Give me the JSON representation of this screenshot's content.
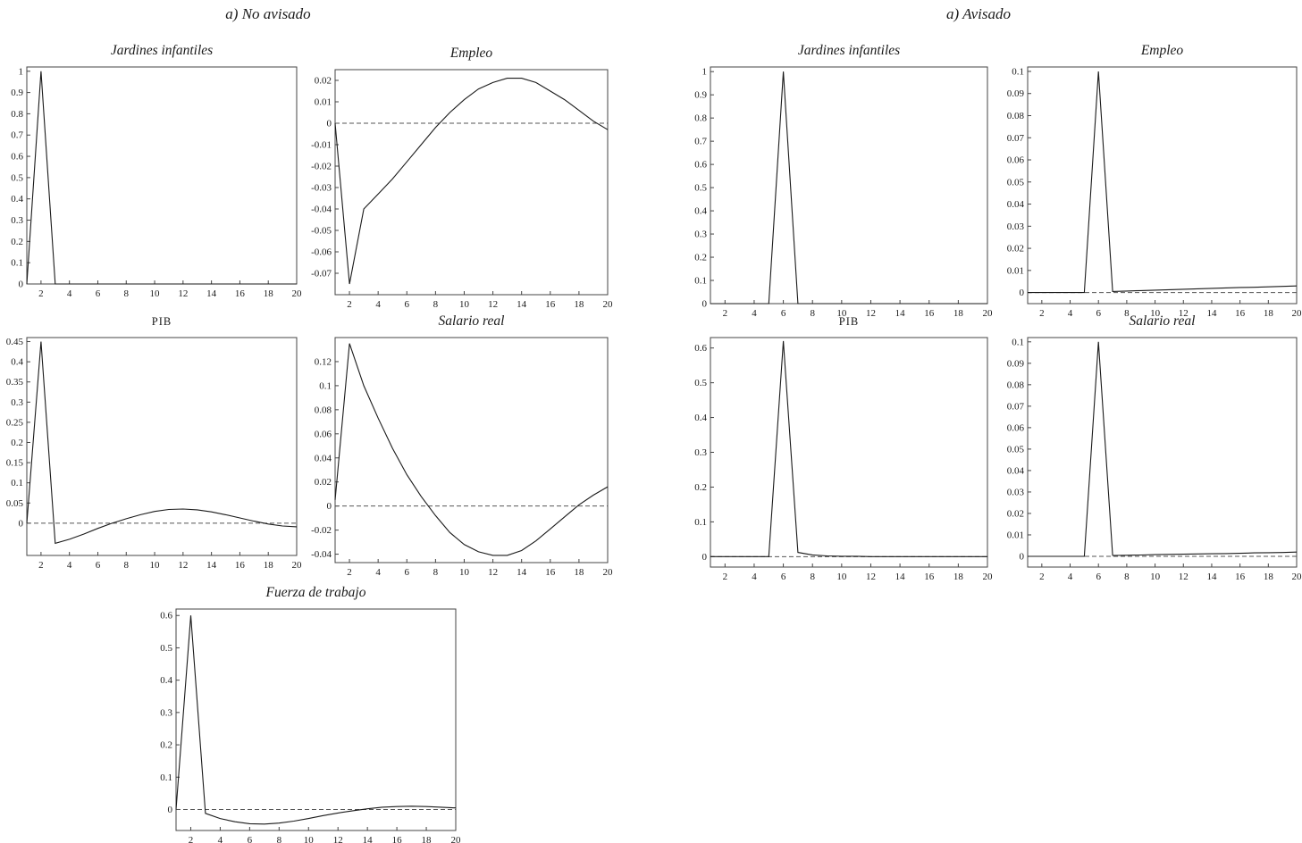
{
  "page": {
    "section_titles": [
      "a) No avisado",
      "a) Avisado"
    ]
  },
  "chart_data": [
    {
      "section": "a) No avisado",
      "title": "Jardines infantiles",
      "type": "line",
      "x": [
        1,
        2,
        3,
        4,
        5,
        6,
        7,
        8,
        9,
        10,
        11,
        12,
        13,
        14,
        15,
        16,
        17,
        18,
        19,
        20
      ],
      "values": [
        0,
        1,
        0,
        0,
        0,
        0,
        0,
        0,
        0,
        0,
        0,
        0,
        0,
        0,
        0,
        0,
        0,
        0,
        0,
        0
      ],
      "xlim": [
        1,
        20
      ],
      "ylim": [
        0,
        1.02
      ],
      "xticks": [
        2,
        4,
        6,
        8,
        10,
        12,
        14,
        16,
        18,
        20
      ],
      "yticks": [
        0,
        0.1,
        0.2,
        0.3,
        0.4,
        0.5,
        0.6,
        0.7,
        0.8,
        0.9,
        1
      ],
      "zero_line": false
    },
    {
      "section": "a) No avisado",
      "title": "Empleo",
      "type": "line",
      "x": [
        1,
        2,
        3,
        4,
        5,
        6,
        7,
        8,
        9,
        10,
        11,
        12,
        13,
        14,
        15,
        16,
        17,
        18,
        19,
        20
      ],
      "values": [
        0,
        -0.075,
        -0.04,
        -0.033,
        -0.026,
        -0.018,
        -0.01,
        -0.002,
        0.005,
        0.011,
        0.016,
        0.019,
        0.021,
        0.021,
        0.019,
        0.015,
        0.011,
        0.006,
        0.001,
        -0.003
      ],
      "xlim": [
        1,
        20
      ],
      "ylim": [
        -0.08,
        0.025
      ],
      "xticks": [
        2,
        4,
        6,
        8,
        10,
        12,
        14,
        16,
        18,
        20
      ],
      "yticks": [
        0.02,
        0.01,
        0,
        -0.01,
        -0.02,
        -0.03,
        -0.04,
        -0.05,
        -0.06,
        -0.07
      ],
      "zero_line": true
    },
    {
      "section": "a) No avisado",
      "title": "PIB",
      "type": "line",
      "x": [
        1,
        2,
        3,
        4,
        5,
        6,
        7,
        8,
        9,
        10,
        11,
        12,
        13,
        14,
        15,
        16,
        17,
        18,
        19,
        20
      ],
      "values": [
        0,
        0.45,
        -0.05,
        -0.04,
        -0.027,
        -0.013,
        0,
        0.011,
        0.021,
        0.029,
        0.034,
        0.035,
        0.033,
        0.028,
        0.021,
        0.013,
        0.005,
        -0.002,
        -0.007,
        -0.009
      ],
      "xlim": [
        1,
        20
      ],
      "ylim": [
        -0.08,
        0.46
      ],
      "xticks": [
        2,
        4,
        6,
        8,
        10,
        12,
        14,
        16,
        18,
        20
      ],
      "yticks": [
        0.45,
        0.4,
        0.35,
        0.3,
        0.25,
        0.2,
        0.15,
        0.1,
        0.05,
        0
      ],
      "zero_line": true
    },
    {
      "section": "a) No avisado",
      "title": "Salario real",
      "type": "line",
      "x": [
        1,
        2,
        3,
        4,
        5,
        6,
        7,
        8,
        9,
        10,
        11,
        12,
        13,
        14,
        15,
        16,
        17,
        18,
        19,
        20
      ],
      "values": [
        0.005,
        0.135,
        0.1,
        0.073,
        0.048,
        0.026,
        0.008,
        -0.008,
        -0.022,
        -0.032,
        -0.038,
        -0.041,
        -0.041,
        -0.037,
        -0.029,
        -0.019,
        -0.009,
        0.001,
        0.009,
        0.016
      ],
      "xlim": [
        1,
        20
      ],
      "ylim": [
        -0.047,
        0.14
      ],
      "xticks": [
        2,
        4,
        6,
        8,
        10,
        12,
        14,
        16,
        18,
        20
      ],
      "yticks": [
        0.12,
        0.1,
        0.08,
        0.06,
        0.04,
        0.02,
        0,
        -0.02,
        -0.04
      ],
      "zero_line": true
    },
    {
      "section": "a) No avisado",
      "title": "Fuerza de trabajo",
      "type": "line",
      "x": [
        1,
        2,
        3,
        4,
        5,
        6,
        7,
        8,
        9,
        10,
        11,
        12,
        13,
        14,
        15,
        16,
        17,
        18,
        19,
        20
      ],
      "values": [
        0,
        0.6,
        -0.012,
        -0.028,
        -0.038,
        -0.044,
        -0.045,
        -0.042,
        -0.036,
        -0.028,
        -0.019,
        -0.011,
        -0.004,
        0.002,
        0.007,
        0.009,
        0.01,
        0.009,
        0.007,
        0.005
      ],
      "xlim": [
        1,
        20
      ],
      "ylim": [
        -0.065,
        0.62
      ],
      "xticks": [
        2,
        4,
        6,
        8,
        10,
        12,
        14,
        16,
        18,
        20
      ],
      "yticks": [
        0.6,
        0.5,
        0.4,
        0.3,
        0.2,
        0.1,
        0
      ],
      "zero_line": true
    },
    {
      "section": "a) Avisado",
      "title": "Jardines infantiles",
      "type": "line",
      "x": [
        1,
        2,
        3,
        4,
        5,
        6,
        7,
        8,
        9,
        10,
        11,
        12,
        13,
        14,
        15,
        16,
        17,
        18,
        19,
        20
      ],
      "values": [
        0,
        0,
        0,
        0,
        0,
        1,
        0,
        0,
        0,
        0,
        0,
        0,
        0,
        0,
        0,
        0,
        0,
        0,
        0,
        0
      ],
      "xlim": [
        1,
        20
      ],
      "ylim": [
        0,
        1.02
      ],
      "xticks": [
        2,
        4,
        6,
        8,
        10,
        12,
        14,
        16,
        18,
        20
      ],
      "yticks": [
        0,
        0.1,
        0.2,
        0.3,
        0.4,
        0.5,
        0.6,
        0.7,
        0.8,
        0.9,
        1
      ],
      "zero_line": false
    },
    {
      "section": "a) Avisado",
      "title": "Empleo",
      "type": "line",
      "x": [
        1,
        2,
        3,
        4,
        5,
        6,
        7,
        8,
        9,
        10,
        11,
        12,
        13,
        14,
        15,
        16,
        17,
        18,
        19,
        20
      ],
      "values": [
        0,
        0,
        0,
        0,
        0,
        0.1,
        0.0005,
        0.0007,
        0.0009,
        0.0011,
        0.0013,
        0.0015,
        0.0017,
        0.0019,
        0.0021,
        0.0023,
        0.0024,
        0.0026,
        0.0028,
        0.003
      ],
      "xlim": [
        1,
        20
      ],
      "ylim": [
        -0.005,
        0.102
      ],
      "xticks": [
        2,
        4,
        6,
        8,
        10,
        12,
        14,
        16,
        18,
        20
      ],
      "yticks": [
        0.1,
        0.09,
        0.08,
        0.07,
        0.06,
        0.05,
        0.04,
        0.03,
        0.02,
        0.01,
        0
      ],
      "zero_line": true
    },
    {
      "section": "a) Avisado",
      "title": "PIB",
      "type": "line",
      "x": [
        1,
        2,
        3,
        4,
        5,
        6,
        7,
        8,
        9,
        10,
        11,
        12,
        13,
        14,
        15,
        16,
        17,
        18,
        19,
        20
      ],
      "values": [
        0,
        0,
        0,
        0,
        0,
        0.62,
        0.012,
        0.005,
        0.002,
        0.001,
        0.001,
        0,
        0,
        0,
        0,
        0,
        0,
        0,
        0,
        0
      ],
      "xlim": [
        1,
        20
      ],
      "ylim": [
        -0.03,
        0.63
      ],
      "xticks": [
        2,
        4,
        6,
        8,
        10,
        12,
        14,
        16,
        18,
        20
      ],
      "yticks": [
        0.6,
        0.5,
        0.4,
        0.3,
        0.2,
        0.1,
        0
      ],
      "zero_line": true
    },
    {
      "section": "a) Avisado",
      "title": "Salario real",
      "type": "line",
      "x": [
        1,
        2,
        3,
        4,
        5,
        6,
        7,
        8,
        9,
        10,
        11,
        12,
        13,
        14,
        15,
        16,
        17,
        18,
        19,
        20
      ],
      "values": [
        0,
        0,
        0,
        0,
        0,
        0.1,
        0.0004,
        0.0005,
        0.0006,
        0.0008,
        0.0009,
        0.001,
        0.0011,
        0.0012,
        0.0013,
        0.0014,
        0.0016,
        0.0017,
        0.0018,
        0.002
      ],
      "xlim": [
        1,
        20
      ],
      "ylim": [
        -0.005,
        0.102
      ],
      "xticks": [
        2,
        4,
        6,
        8,
        10,
        12,
        14,
        16,
        18,
        20
      ],
      "yticks": [
        0.1,
        0.09,
        0.08,
        0.07,
        0.06,
        0.05,
        0.04,
        0.03,
        0.02,
        0.01,
        0
      ],
      "zero_line": true
    }
  ]
}
